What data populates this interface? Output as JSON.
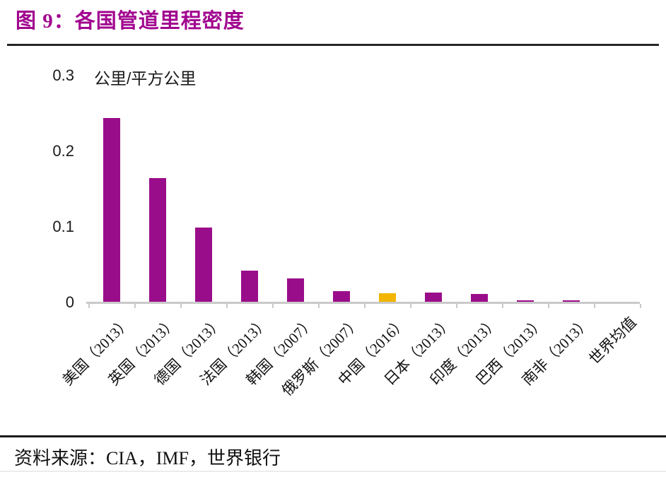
{
  "figure": {
    "title": "图 9：各国管道里程密度",
    "source_label": "资料来源：CIA，IMF，世界银行"
  },
  "chart_data": {
    "type": "bar",
    "title": "各国管道里程密度",
    "unit_label": "公里/平方公里",
    "categories": [
      "美国（2013）",
      "英国（2013）",
      "德国（2013）",
      "法国（2013）",
      "韩国（2007）",
      "俄罗斯（2007）",
      "中国（2016）",
      "日本（2013）",
      "印度（2013）",
      "巴西（2013）",
      "南非（2013）",
      "世界均值"
    ],
    "values": [
      0.245,
      0.165,
      0.1,
      0.043,
      0.033,
      0.016,
      0.013,
      0.014,
      0.012,
      0.004,
      0.004,
      0.001
    ],
    "xlabel": "",
    "ylabel": "公里/平方公里",
    "ylim": [
      0,
      0.3
    ],
    "y_ticks": [
      0,
      0.1,
      0.2,
      0.3
    ],
    "y_tick_labels": [
      "0",
      "0.1",
      "0.2",
      "0.3"
    ],
    "grid": false,
    "legend": false,
    "colors": {
      "bar_default": "#9A0D8A",
      "bar_highlight": "#F2B500",
      "highlight_index": 6,
      "title_accent": "#A1058F",
      "axis": "#C9C9C9",
      "text": "#1a1a1a"
    }
  }
}
